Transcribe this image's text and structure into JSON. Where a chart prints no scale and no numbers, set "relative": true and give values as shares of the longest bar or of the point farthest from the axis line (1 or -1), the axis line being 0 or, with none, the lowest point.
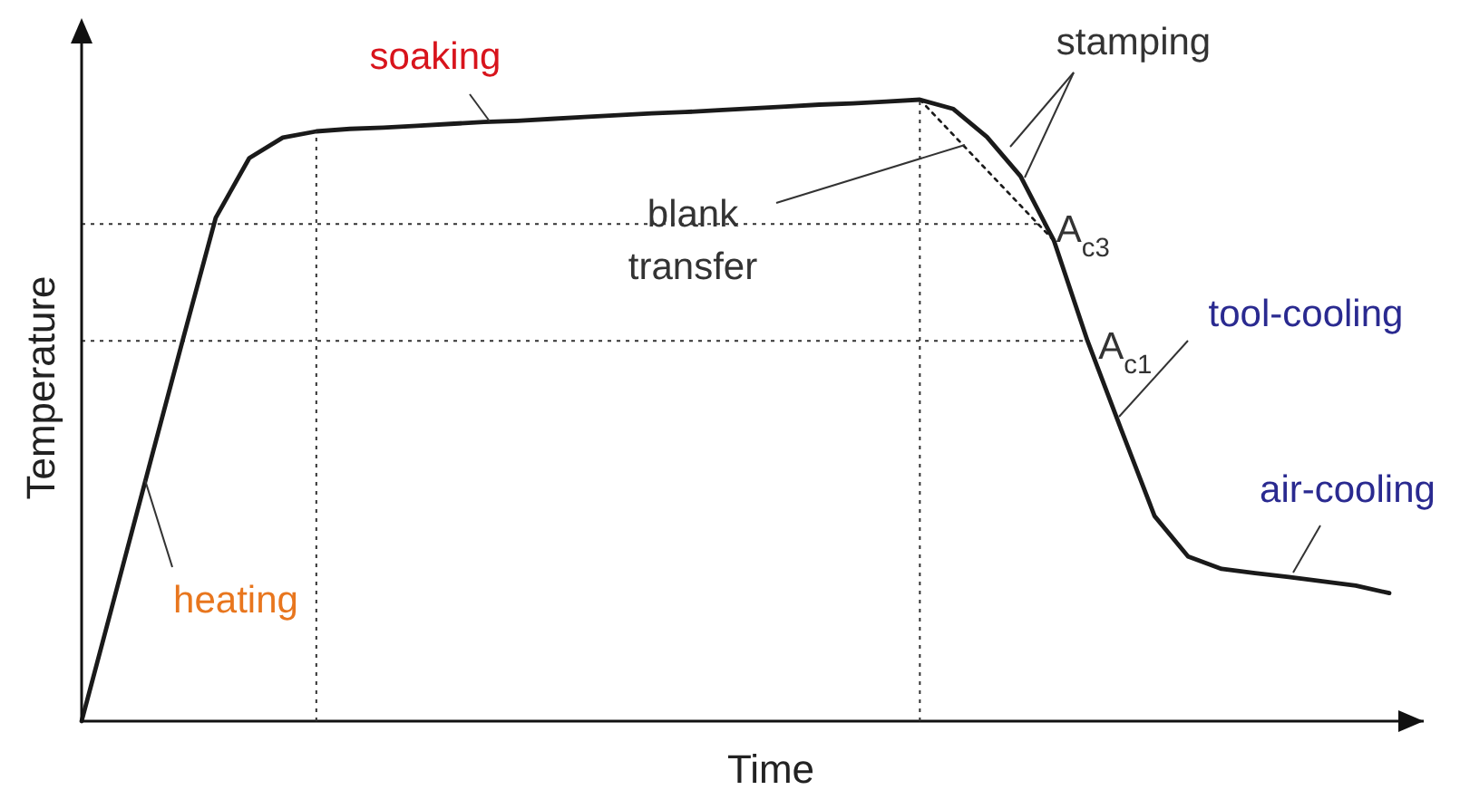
{
  "chart_data": {
    "type": "line",
    "relative": true,
    "xlabel": "Time",
    "ylabel": "Temperature",
    "categories": [
      null,
      null,
      null,
      null,
      null,
      null,
      null,
      null,
      null,
      null,
      null,
      null,
      null,
      null,
      null,
      null,
      null,
      null,
      null,
      null,
      null,
      null,
      null,
      null,
      null,
      null,
      null,
      null,
      null,
      null,
      null,
      null,
      null,
      null,
      null,
      null,
      null,
      null,
      null,
      null
    ],
    "series": [
      {
        "color": "#1a1a1a",
        "line_style": "solid",
        "values": [
          0,
          0.203,
          0.407,
          0.61,
          0.81,
          0.906,
          0.939,
          0.949,
          0.953,
          0.955,
          0.958,
          0.961,
          0.964,
          0.966,
          0.969,
          0.972,
          0.975,
          0.978,
          0.98,
          0.983,
          0.986,
          0.989,
          0.992,
          0.994,
          0.997,
          1.0,
          0.985,
          0.94,
          0.877,
          0.773,
          0.612,
          0.47,
          0.33,
          0.265,
          0.245,
          0.238,
          0.232,
          0.225,
          0.218,
          0.206
        ]
      },
      {
        "color": "#1a1a1a",
        "line_style": "dotted",
        "values": [
          null,
          null,
          null,
          null,
          null,
          null,
          null,
          null,
          null,
          null,
          null,
          null,
          null,
          null,
          null,
          null,
          null,
          null,
          null,
          null,
          null,
          null,
          null,
          null,
          null,
          1.0,
          null,
          null,
          null,
          0.773,
          null,
          null,
          null,
          null,
          null,
          null,
          null,
          null,
          null,
          null
        ]
      }
    ],
    "ref_lines": [
      {
        "axis": "y",
        "value": 0.8,
        "label": "A$_{c3}$",
        "line_style": "dotted"
      },
      {
        "axis": "y",
        "value": 0.612,
        "label": "A$_{c1}$",
        "line_style": "dotted"
      }
    ],
    "annotations": [
      "soaking",
      "stamping",
      "blank\ntransfer",
      "tool-cooling",
      "air-cooling",
      "heating"
    ]
  }
}
